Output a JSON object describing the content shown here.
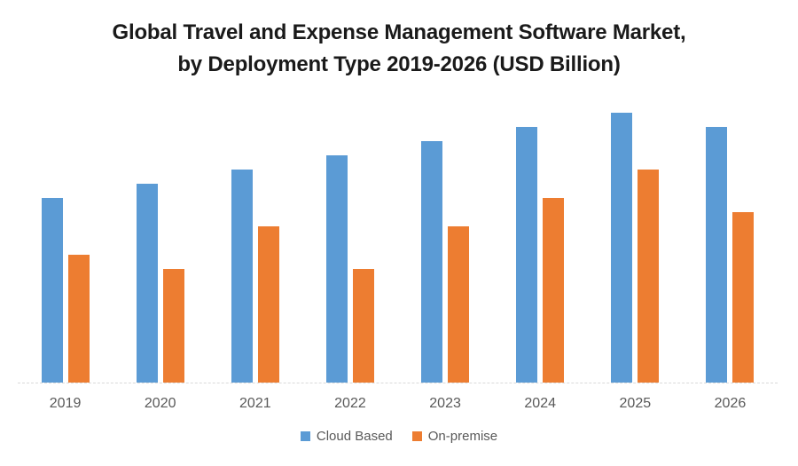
{
  "title": {
    "line1": "Global Travel and Expense Management Software Market,",
    "line2": "by Deployment Type 2019-2026 (USD Billion)"
  },
  "colors": {
    "cloud_based": "#5B9BD5",
    "on_premise": "#ED7D31",
    "axis_line": "#D9D9D9",
    "tick_label": "#595959",
    "legend_label": "#595959",
    "title_text": "#1A1A1A",
    "background": "#FFFFFF"
  },
  "chart_data": {
    "type": "bar",
    "title": "Global Travel and Expense Management Software Market, by Deployment Type 2019-2026 (USD Billion)",
    "categories": [
      "2019",
      "2020",
      "2021",
      "2022",
      "2023",
      "2024",
      "2025",
      "2026"
    ],
    "series": [
      {
        "name": "Cloud Based",
        "color": "#5B9BD5",
        "values": [
          1.3,
          1.4,
          1.5,
          1.6,
          1.7,
          1.8,
          1.9,
          1.8
        ]
      },
      {
        "name": "On-premise",
        "color": "#ED7D31",
        "values": [
          0.9,
          0.8,
          1.1,
          0.8,
          1.1,
          1.3,
          1.5,
          1.2
        ]
      }
    ],
    "xlabel": "",
    "ylabel": "",
    "ylim": [
      0,
      2.0
    ],
    "y_axis_visible": false,
    "gridlines": false,
    "x_axis_style": "dashed",
    "legend_position": "bottom"
  },
  "legend": {
    "items": [
      {
        "label": "Cloud Based",
        "color": "#5B9BD5"
      },
      {
        "label": "On-premise",
        "color": "#ED7D31"
      }
    ]
  }
}
